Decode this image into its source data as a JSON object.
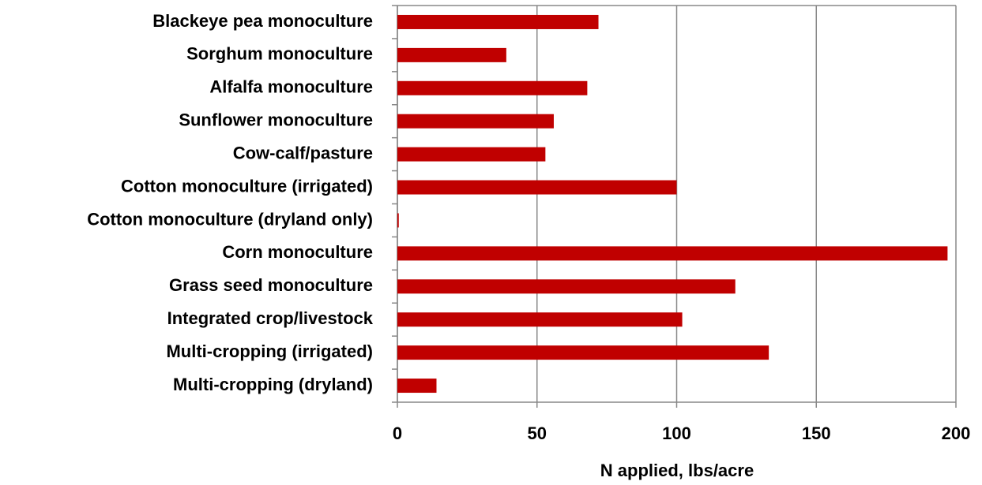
{
  "chart_data": {
    "type": "bar",
    "orientation": "horizontal",
    "x_label": "N applied, lbs/acre",
    "categories": [
      "Blackeye pea monoculture",
      "Sorghum monoculture",
      "Alfalfa monoculture",
      "Sunflower monoculture",
      "Cow-calf/pasture",
      "Cotton monoculture (irrigated)",
      "Cotton monoculture (dryland only)",
      "Corn monoculture",
      "Grass seed monoculture",
      "Integrated crop/livestock",
      "Multi-cropping (irrigated)",
      "Multi-cropping (dryland)"
    ],
    "values": [
      72,
      39,
      68,
      56,
      53,
      100,
      0.5,
      197,
      121,
      102,
      133,
      14
    ],
    "color": "#c00000",
    "xlim": [
      0,
      200
    ],
    "xticks": [
      0,
      50,
      100,
      150,
      200
    ],
    "grid": true
  }
}
